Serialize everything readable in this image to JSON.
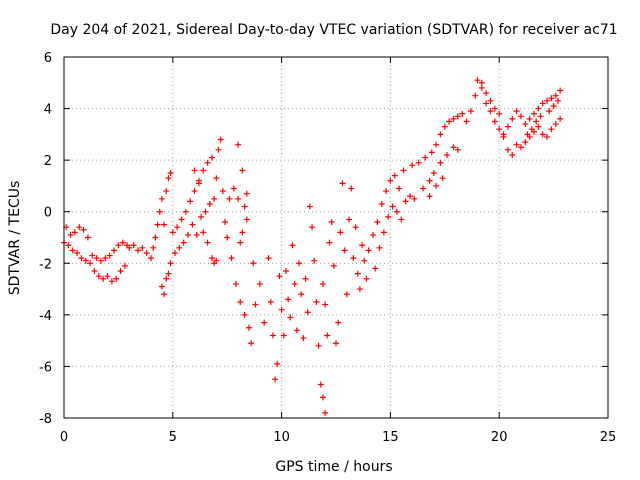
{
  "chart_data": {
    "type": "scatter",
    "title": "Day 204 of 2021, Sidereal Day-to-day VTEC variation (SDTVAR) for receiver ac71",
    "xlabel": "GPS time / hours",
    "ylabel": "SDTVAR / TECUs",
    "xlim": [
      0,
      25
    ],
    "ylim": [
      -8,
      6
    ],
    "xticks": [
      "0",
      "5",
      "10",
      "15",
      "20",
      "25"
    ],
    "yticks": [
      "-8",
      "-6",
      "-4",
      "-2",
      "0",
      "2",
      "4",
      "6"
    ],
    "grid": true,
    "marker": "plus",
    "color": "#ff0000",
    "series": [
      {
        "points": [
          [
            0.0,
            -1.2
          ],
          [
            0.1,
            -0.6
          ],
          [
            0.2,
            -1.3
          ],
          [
            0.3,
            -0.9
          ],
          [
            0.4,
            -1.5
          ],
          [
            0.5,
            -0.8
          ],
          [
            0.6,
            -1.6
          ],
          [
            0.7,
            -0.6
          ],
          [
            0.8,
            -1.8
          ],
          [
            0.9,
            -0.7
          ],
          [
            1.0,
            -1.9
          ],
          [
            1.1,
            -1.0
          ],
          [
            1.2,
            -2.0
          ],
          [
            1.3,
            -1.7
          ],
          [
            1.4,
            -2.3
          ],
          [
            1.5,
            -1.8
          ],
          [
            1.6,
            -2.5
          ],
          [
            1.7,
            -1.9
          ],
          [
            1.8,
            -2.6
          ],
          [
            1.9,
            -1.8
          ],
          [
            2.0,
            -2.5
          ],
          [
            2.1,
            -1.7
          ],
          [
            2.2,
            -2.7
          ],
          [
            2.3,
            -1.5
          ],
          [
            2.4,
            -2.6
          ],
          [
            2.5,
            -1.3
          ],
          [
            2.6,
            -2.3
          ],
          [
            2.7,
            -1.2
          ],
          [
            2.8,
            -2.1
          ],
          [
            2.9,
            -1.3
          ],
          [
            3.0,
            -1.4
          ],
          [
            3.2,
            -1.3
          ],
          [
            3.4,
            -1.5
          ],
          [
            3.6,
            -1.4
          ],
          [
            3.8,
            -1.6
          ],
          [
            4.0,
            -1.8
          ],
          [
            4.1,
            -1.4
          ],
          [
            4.2,
            -1.0
          ],
          [
            4.3,
            -0.5
          ],
          [
            4.4,
            0.0
          ],
          [
            4.5,
            0.5
          ],
          [
            4.6,
            -0.5
          ],
          [
            4.7,
            0.8
          ],
          [
            4.8,
            1.3
          ],
          [
            4.9,
            1.5
          ],
          [
            4.5,
            -2.9
          ],
          [
            4.6,
            -3.2
          ],
          [
            4.7,
            -2.6
          ],
          [
            4.8,
            -2.4
          ],
          [
            4.9,
            -2.0
          ],
          [
            5.0,
            -0.8
          ],
          [
            5.1,
            -1.6
          ],
          [
            5.2,
            -0.6
          ],
          [
            5.3,
            -1.4
          ],
          [
            5.4,
            -0.3
          ],
          [
            5.5,
            -1.2
          ],
          [
            5.6,
            0.0
          ],
          [
            5.7,
            -0.9
          ],
          [
            5.8,
            0.4
          ],
          [
            5.9,
            -0.5
          ],
          [
            6.0,
            0.8
          ],
          [
            6.1,
            -0.9
          ],
          [
            6.2,
            1.2
          ],
          [
            6.3,
            -0.2
          ],
          [
            6.4,
            1.6
          ],
          [
            6.5,
            0.0
          ],
          [
            6.6,
            1.9
          ],
          [
            6.7,
            0.3
          ],
          [
            6.8,
            2.1
          ],
          [
            6.9,
            0.5
          ],
          [
            6.0,
            1.6
          ],
          [
            6.2,
            1.1
          ],
          [
            6.4,
            -0.8
          ],
          [
            6.6,
            -1.2
          ],
          [
            6.8,
            -1.8
          ],
          [
            6.9,
            -2.0
          ],
          [
            7.0,
            1.3
          ],
          [
            7.0,
            -1.9
          ],
          [
            7.1,
            2.4
          ],
          [
            7.2,
            2.8
          ],
          [
            7.3,
            0.8
          ],
          [
            7.4,
            -0.4
          ],
          [
            7.5,
            -1.0
          ],
          [
            7.6,
            0.5
          ],
          [
            7.7,
            -1.8
          ],
          [
            7.8,
            0.9
          ],
          [
            7.9,
            -2.8
          ],
          [
            8.0,
            2.6
          ],
          [
            8.0,
            0.5
          ],
          [
            8.1,
            -3.5
          ],
          [
            8.2,
            1.6
          ],
          [
            8.2,
            -0.8
          ],
          [
            8.3,
            -4.0
          ],
          [
            8.4,
            0.7
          ],
          [
            8.5,
            -4.5
          ],
          [
            8.6,
            -5.1
          ],
          [
            8.1,
            -1.2
          ],
          [
            8.3,
            0.2
          ],
          [
            8.4,
            -0.3
          ],
          [
            8.7,
            -2.0
          ],
          [
            8.8,
            -3.6
          ],
          [
            9.0,
            -2.8
          ],
          [
            9.2,
            -4.3
          ],
          [
            9.4,
            -1.8
          ],
          [
            9.5,
            -3.5
          ],
          [
            9.6,
            -4.8
          ],
          [
            9.7,
            -6.5
          ],
          [
            9.8,
            -5.9
          ],
          [
            9.9,
            -2.5
          ],
          [
            10.0,
            -3.8
          ],
          [
            10.1,
            -4.8
          ],
          [
            10.2,
            -2.3
          ],
          [
            10.3,
            -3.4
          ],
          [
            10.4,
            -4.1
          ],
          [
            10.5,
            -1.3
          ],
          [
            10.6,
            -2.8
          ],
          [
            10.7,
            -4.6
          ],
          [
            10.8,
            -2.0
          ],
          [
            10.9,
            -3.2
          ],
          [
            11.0,
            -4.9
          ],
          [
            11.1,
            -2.6
          ],
          [
            11.2,
            -3.9
          ],
          [
            11.3,
            0.2
          ],
          [
            11.4,
            -0.6
          ],
          [
            11.5,
            -1.9
          ],
          [
            11.6,
            -3.5
          ],
          [
            11.7,
            -5.2
          ],
          [
            11.8,
            -6.7
          ],
          [
            11.9,
            -7.2
          ],
          [
            12.0,
            -7.8
          ],
          [
            11.9,
            -2.8
          ],
          [
            12.0,
            -3.6
          ],
          [
            12.1,
            -4.8
          ],
          [
            12.2,
            -1.2
          ],
          [
            12.3,
            -0.4
          ],
          [
            12.4,
            -2.1
          ],
          [
            12.5,
            -5.1
          ],
          [
            12.6,
            -4.3
          ],
          [
            12.7,
            -0.8
          ],
          [
            12.8,
            1.1
          ],
          [
            12.9,
            -1.5
          ],
          [
            13.0,
            -3.2
          ],
          [
            13.1,
            -0.3
          ],
          [
            13.2,
            0.9
          ],
          [
            13.3,
            -1.8
          ],
          [
            13.4,
            -0.6
          ],
          [
            13.5,
            -2.4
          ],
          [
            13.6,
            -3.0
          ],
          [
            13.7,
            -1.3
          ],
          [
            13.8,
            -1.9
          ],
          [
            13.9,
            -2.6
          ],
          [
            14.0,
            -1.5
          ],
          [
            14.2,
            -0.9
          ],
          [
            14.4,
            -0.4
          ],
          [
            14.6,
            0.3
          ],
          [
            14.8,
            0.8
          ],
          [
            15.0,
            1.2
          ],
          [
            15.2,
            1.4
          ],
          [
            15.4,
            0.9
          ],
          [
            15.6,
            1.6
          ],
          [
            14.3,
            -2.2
          ],
          [
            14.5,
            -1.4
          ],
          [
            14.7,
            -0.8
          ],
          [
            14.9,
            -0.2
          ],
          [
            15.1,
            0.2
          ],
          [
            15.3,
            0.0
          ],
          [
            15.5,
            -0.3
          ],
          [
            15.7,
            0.4
          ],
          [
            15.9,
            0.6
          ],
          [
            16.1,
            0.5
          ],
          [
            16.0,
            1.8
          ],
          [
            16.3,
            1.9
          ],
          [
            16.6,
            2.1
          ],
          [
            16.9,
            2.3
          ],
          [
            17.1,
            2.6
          ],
          [
            17.3,
            3.0
          ],
          [
            17.5,
            3.3
          ],
          [
            17.7,
            3.5
          ],
          [
            17.9,
            3.6
          ],
          [
            18.1,
            3.7
          ],
          [
            16.5,
            0.9
          ],
          [
            16.8,
            1.2
          ],
          [
            17.0,
            1.5
          ],
          [
            17.3,
            1.9
          ],
          [
            17.6,
            2.2
          ],
          [
            17.9,
            2.5
          ],
          [
            18.1,
            2.4
          ],
          [
            16.8,
            0.6
          ],
          [
            17.1,
            1.0
          ],
          [
            17.4,
            1.3
          ],
          [
            18.3,
            3.8
          ],
          [
            18.5,
            3.5
          ],
          [
            18.7,
            3.9
          ],
          [
            18.9,
            4.5
          ],
          [
            19.0,
            5.1
          ],
          [
            19.2,
            5.0
          ],
          [
            19.4,
            4.6
          ],
          [
            19.6,
            4.3
          ],
          [
            19.8,
            4.0
          ],
          [
            20.0,
            3.8
          ],
          [
            19.2,
            4.8
          ],
          [
            19.4,
            4.2
          ],
          [
            19.6,
            3.9
          ],
          [
            19.8,
            3.5
          ],
          [
            20.0,
            3.2
          ],
          [
            20.2,
            3.0
          ],
          [
            20.4,
            3.3
          ],
          [
            20.6,
            3.6
          ],
          [
            20.2,
            2.9
          ],
          [
            20.4,
            2.4
          ],
          [
            20.6,
            2.2
          ],
          [
            20.8,
            2.6
          ],
          [
            21.0,
            2.5
          ],
          [
            21.2,
            2.7
          ],
          [
            21.4,
            2.9
          ],
          [
            21.6,
            3.1
          ],
          [
            21.8,
            3.3
          ],
          [
            22.0,
            3.0
          ],
          [
            22.2,
            2.9
          ],
          [
            22.4,
            3.2
          ],
          [
            20.8,
            3.9
          ],
          [
            21.0,
            3.7
          ],
          [
            21.2,
            3.4
          ],
          [
            21.4,
            3.6
          ],
          [
            21.6,
            3.8
          ],
          [
            21.8,
            4.0
          ],
          [
            22.0,
            4.2
          ],
          [
            22.2,
            4.3
          ],
          [
            22.4,
            4.4
          ],
          [
            22.6,
            4.5
          ],
          [
            22.8,
            4.7
          ],
          [
            22.6,
            3.4
          ],
          [
            22.8,
            3.6
          ],
          [
            22.3,
            3.9
          ],
          [
            22.5,
            4.1
          ],
          [
            22.7,
            4.3
          ],
          [
            21.9,
            3.7
          ],
          [
            21.7,
            3.5
          ],
          [
            21.5,
            3.2
          ],
          [
            21.3,
            3.0
          ]
        ]
      }
    ]
  }
}
